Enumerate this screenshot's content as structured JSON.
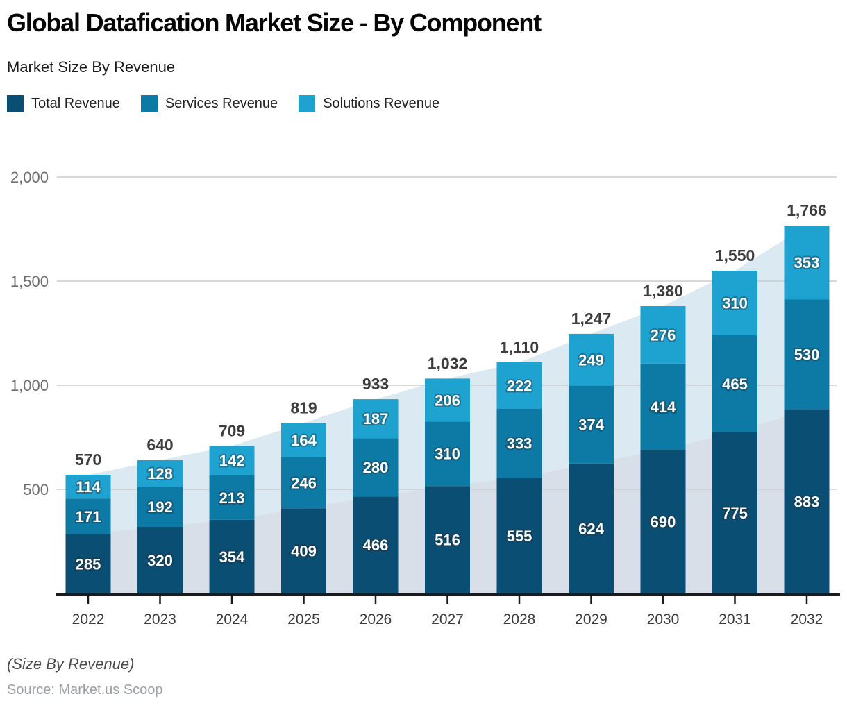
{
  "header": {
    "title": "Global Datafication Market Size - By Component",
    "subtitle": "Market Size By Revenue"
  },
  "legend": {
    "items": [
      {
        "label": "Total Revenue",
        "color": "#0b4e74"
      },
      {
        "label": "Services Revenue",
        "color": "#0d7aa6"
      },
      {
        "label": "Solutions Revenue",
        "color": "#1ea3d1"
      }
    ]
  },
  "footer": {
    "note": "(Size By Revenue)",
    "source": "Source: Market.us Scoop"
  },
  "colors": {
    "area_total_trend": "#dbe9f2",
    "area_base_trend": "#d8dfe8",
    "gridline": "#cccccc",
    "axis": "#1a1a1a",
    "total_label": "#3d3d3d",
    "x_label": "#3b3b3b",
    "y_label": "#6f6f6f",
    "segment_label": "#ffffff"
  },
  "chart_data": {
    "type": "bar",
    "stacked": true,
    "title": "Global Datafication Market Size - By Component",
    "subtitle": "Market Size By Revenue",
    "categories": [
      "2022",
      "2023",
      "2024",
      "2025",
      "2026",
      "2027",
      "2028",
      "2029",
      "2030",
      "2031",
      "2032"
    ],
    "series": [
      {
        "name": "Total Revenue",
        "color": "#0b4e74",
        "values": [
          285,
          320,
          354,
          409,
          466,
          516,
          555,
          624,
          690,
          775,
          883
        ]
      },
      {
        "name": "Services Revenue",
        "color": "#0d7aa6",
        "values": [
          171,
          192,
          213,
          246,
          280,
          310,
          333,
          374,
          414,
          465,
          530
        ]
      },
      {
        "name": "Solutions Revenue",
        "color": "#1ea3d1",
        "values": [
          114,
          128,
          142,
          164,
          187,
          206,
          222,
          249,
          276,
          310,
          353
        ]
      }
    ],
    "totals": [
      570,
      640,
      709,
      819,
      933,
      1032,
      1110,
      1247,
      1380,
      1550,
      1766
    ],
    "total_labels": [
      "570",
      "640",
      "709",
      "819",
      "933",
      "1,032",
      "1,110",
      "1,247",
      "1,380",
      "1,550",
      "1,766"
    ],
    "y_ticks": [
      {
        "value": 2000,
        "label": "2,000"
      },
      {
        "value": 1500,
        "label": "1,500"
      },
      {
        "value": 1000,
        "label": "1,000"
      },
      {
        "value": 500,
        "label": "500"
      }
    ],
    "ylim": [
      0,
      2000
    ],
    "grid": true,
    "legend_position": "top",
    "background_trend_areas": [
      "totals",
      "Total Revenue"
    ]
  }
}
